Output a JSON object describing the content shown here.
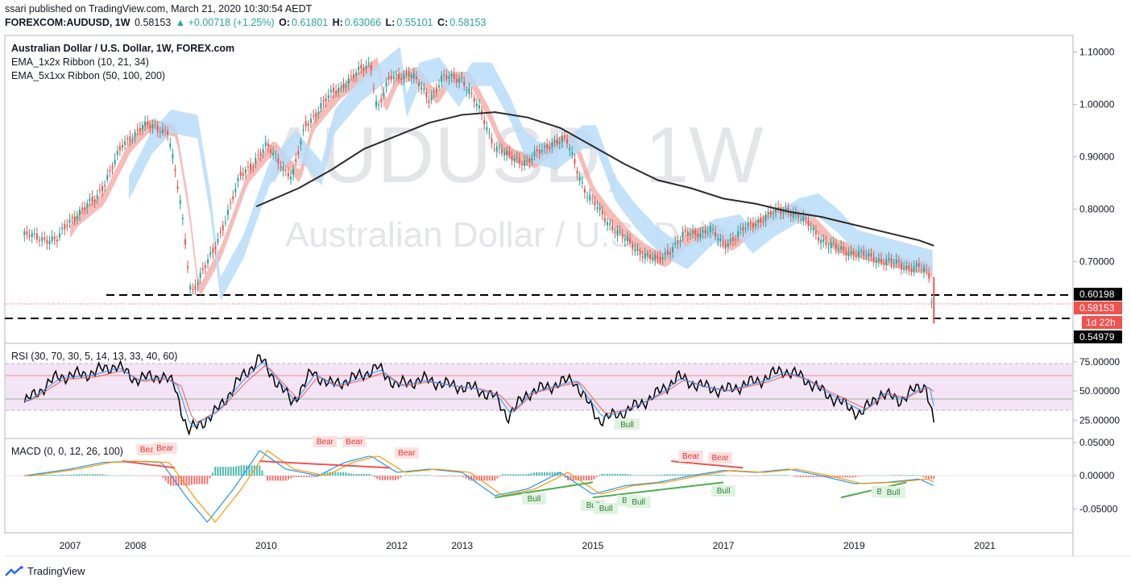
{
  "header": {
    "published": "ssari published on TradingView.com, March 21, 2020 10:30:54 AEDT",
    "symbol": "FOREXCOM:AUDUSD, 1W",
    "last": "0.58153",
    "change": "▲ +0.00718 (+1.25%)",
    "o_label": "O:",
    "o": "0.61801",
    "h_label": "H:",
    "h": "0.63066",
    "l_label": "L:",
    "l": "0.55101",
    "c_label": "C:",
    "c": "0.58153"
  },
  "legend": {
    "title": "Australian Dollar / U.S. Dollar, 1W, FOREX.com",
    "ema1_name": "EMA_1x2x Ribbon",
    "ema1_params": "(10, 21, 34)",
    "ema2_name": "EMA_5x1xx Ribbon",
    "ema2_params": "(50, 100, 200)"
  },
  "watermark": {
    "symbol": "AUDUSD, 1W",
    "name": "Australian Dollar / U.S. Dollar"
  },
  "price_labels": {
    "level_upper": "0.60198",
    "last": "0.58153",
    "countdown": "1d 22h",
    "level_lower": "0.54979"
  },
  "rsi": {
    "label": "RSI (30, 70, 30, 5, 14, 13, 33, 40, 60)"
  },
  "macd": {
    "label": "MACD (0, 0, 12, 26, 100)"
  },
  "footer": {
    "brand": "TradingView"
  },
  "colors": {
    "bull": "#26a69a",
    "bear": "#ef5350",
    "ribbon_red": "#f4a6a0",
    "ribbon_blue": "#b9dcf7",
    "ema200": "#2a2a2a",
    "rsi_band": "#f3e5f5"
  },
  "chart_data": [
    {
      "type": "line",
      "title": "Australian Dollar / U.S. Dollar, 1W, FOREX.com",
      "x_ticks": [
        "2007",
        "2008",
        "2010",
        "2012",
        "2013",
        "2015",
        "2017",
        "2019",
        "2021"
      ],
      "y_ticks": [
        "1.10000",
        "1.00000",
        "0.90000",
        "0.80000",
        "0.70000"
      ],
      "ylim": [
        0.545,
        1.13
      ],
      "horizontal_levels": [
        0.60198,
        0.54979
      ],
      "series": [
        {
          "name": "AUDUSD",
          "x": [
            2006.3,
            2006.8,
            2007.0,
            2007.4,
            2007.8,
            2008.1,
            2008.5,
            2008.7,
            2008.85,
            2009.2,
            2009.6,
            2010.0,
            2010.4,
            2010.6,
            2011.0,
            2011.4,
            2011.6,
            2011.7,
            2011.9,
            2012.2,
            2012.5,
            2012.7,
            2013.0,
            2013.3,
            2013.5,
            2013.7,
            2014.0,
            2014.4,
            2014.6,
            2014.9,
            2015.2,
            2015.5,
            2015.7,
            2016.0,
            2016.4,
            2016.8,
            2017.0,
            2017.3,
            2017.7,
            2018.0,
            2018.3,
            2018.6,
            2018.9,
            2019.2,
            2019.5,
            2019.8,
            2020.0,
            2020.15,
            2020.22
          ],
          "values": [
            0.75,
            0.74,
            0.78,
            0.82,
            0.92,
            0.96,
            0.95,
            0.8,
            0.64,
            0.72,
            0.86,
            0.92,
            0.86,
            0.96,
            1.02,
            1.06,
            1.08,
            0.99,
            1.05,
            1.06,
            1.01,
            1.05,
            1.05,
            0.98,
            0.92,
            0.9,
            0.89,
            0.93,
            0.93,
            0.83,
            0.78,
            0.74,
            0.72,
            0.7,
            0.75,
            0.76,
            0.73,
            0.76,
            0.79,
            0.8,
            0.77,
            0.73,
            0.72,
            0.71,
            0.7,
            0.69,
            0.69,
            0.67,
            0.58153
          ]
        },
        {
          "name": "EMA 200",
          "x": [
            2009.85,
            2010.5,
            2011.0,
            2011.5,
            2012.0,
            2012.5,
            2013.0,
            2013.5,
            2014.0,
            2014.5,
            2015.0,
            2015.5,
            2016.0,
            2016.5,
            2017.0,
            2017.5,
            2018.0,
            2018.5,
            2019.0,
            2019.5,
            2020.0,
            2020.22
          ],
          "values": [
            0.805,
            0.84,
            0.875,
            0.915,
            0.94,
            0.965,
            0.98,
            0.985,
            0.975,
            0.955,
            0.92,
            0.885,
            0.855,
            0.84,
            0.82,
            0.81,
            0.795,
            0.785,
            0.77,
            0.755,
            0.74,
            0.73
          ]
        }
      ]
    },
    {
      "type": "line",
      "title": "RSI (30, 70, 30, 5, 14, 13, 33, 40, 60)",
      "y_ticks": [
        "75.00000",
        "50.00000",
        "25.00000"
      ],
      "ylim": [
        10,
        90
      ],
      "bands": [
        30,
        70
      ],
      "midlines": [
        40,
        60
      ],
      "annotations": [
        "Bull"
      ],
      "series": [
        {
          "name": "RSI",
          "x": [
            2006.3,
            2006.8,
            2007.3,
            2007.7,
            2008.0,
            2008.4,
            2008.6,
            2008.8,
            2009.2,
            2009.6,
            2009.9,
            2010.4,
            2010.7,
            2011.0,
            2011.4,
            2011.7,
            2012.0,
            2012.4,
            2012.8,
            2013.2,
            2013.5,
            2013.7,
            2014.0,
            2014.4,
            2014.7,
            2014.9,
            2015.1,
            2015.4,
            2015.7,
            2016.0,
            2016.3,
            2016.6,
            2017.0,
            2017.3,
            2017.6,
            2017.9,
            2018.2,
            2018.5,
            2018.8,
            2019.1,
            2019.4,
            2019.7,
            2019.9,
            2020.1,
            2020.22
          ],
          "values": [
            40,
            62,
            65,
            72,
            60,
            63,
            55,
            15,
            30,
            60,
            78,
            40,
            66,
            55,
            62,
            70,
            55,
            60,
            55,
            52,
            45,
            28,
            48,
            55,
            60,
            42,
            25,
            30,
            38,
            48,
            62,
            55,
            50,
            55,
            60,
            68,
            62,
            50,
            40,
            30,
            48,
            42,
            50,
            55,
            22
          ]
        }
      ]
    },
    {
      "type": "line",
      "title": "MACD (0, 0, 12, 26, 100)",
      "y_ticks": [
        "0.05000",
        "0.00000",
        "-0.05000"
      ],
      "ylim": [
        -0.085,
        0.055
      ],
      "annotations": [
        "Bear",
        "Bear",
        "Bear",
        "Bear",
        "Bear",
        "Bear",
        "Bear",
        "Bull",
        "Bull",
        "Bull",
        "Bull",
        "Bull",
        "Bull",
        "Bull",
        "Bull"
      ],
      "series": [
        {
          "name": "MACD",
          "x": [
            2006.3,
            2007.0,
            2007.5,
            2008.0,
            2008.4,
            2008.8,
            2009.1,
            2009.5,
            2009.9,
            2010.3,
            2010.8,
            2011.2,
            2011.6,
            2012.0,
            2012.5,
            2013.0,
            2013.5,
            2014.0,
            2014.5,
            2015.0,
            2015.5,
            2016.0,
            2016.5,
            2017.0,
            2017.5,
            2018.0,
            2018.5,
            2019.0,
            2019.5,
            2020.0,
            2020.22
          ],
          "values": [
            0.0,
            0.01,
            0.02,
            0.022,
            0.02,
            -0.035,
            -0.07,
            -0.02,
            0.038,
            0.01,
            0.0,
            0.02,
            0.03,
            0.005,
            0.01,
            0.005,
            -0.03,
            -0.02,
            0.005,
            -0.028,
            -0.015,
            -0.01,
            0.0,
            0.008,
            0.005,
            0.01,
            0.0,
            -0.012,
            -0.01,
            -0.005,
            -0.015
          ]
        }
      ]
    }
  ]
}
